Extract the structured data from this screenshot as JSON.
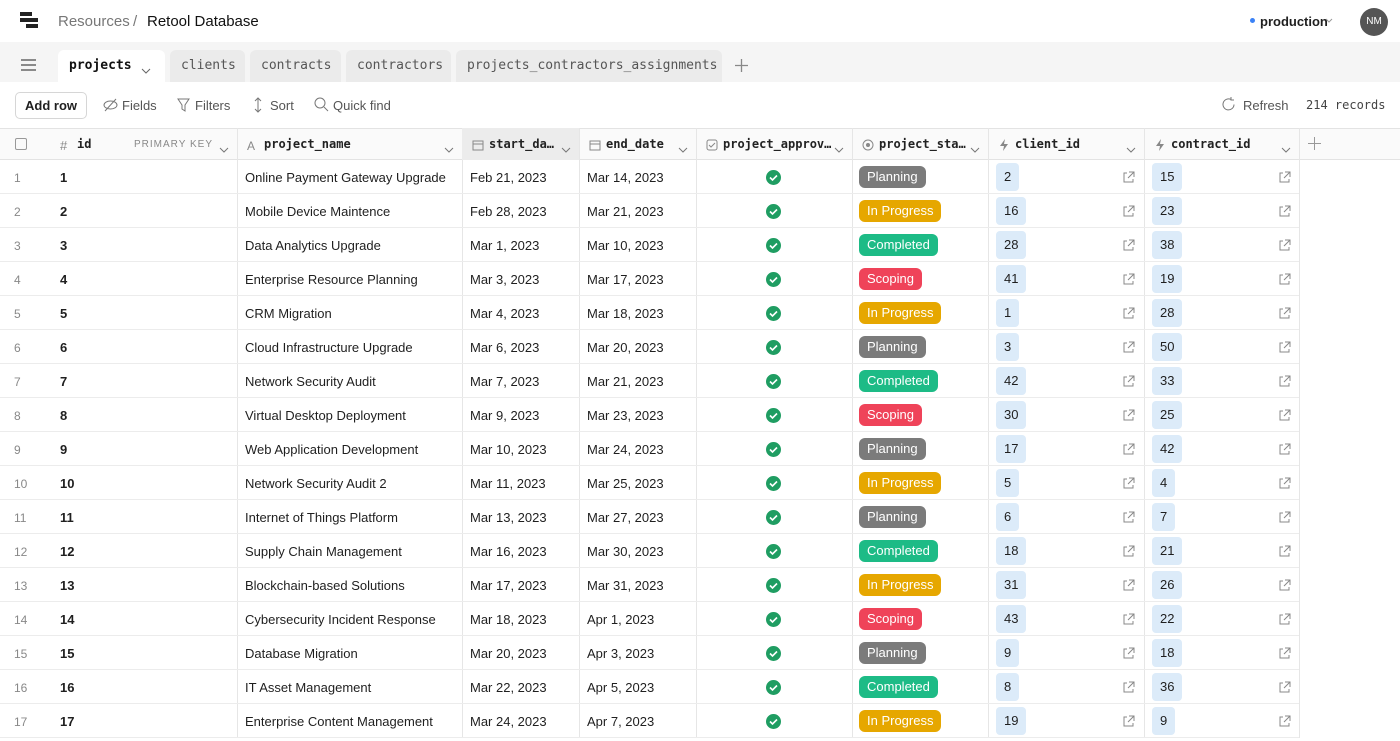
{
  "header": {
    "breadcrumb": "Resources",
    "separator": "/",
    "title": "Retool Database",
    "environment": "production",
    "avatar": "NM"
  },
  "tabs": [
    "projects",
    "clients",
    "contracts",
    "contractors",
    "projects_contractors_assignments"
  ],
  "toolbar": {
    "add_row": "Add row",
    "fields": "Fields",
    "filters": "Filters",
    "sort": "Sort",
    "quick_find": "Quick find",
    "refresh": "Refresh",
    "records": "214 records"
  },
  "table": {
    "columns": [
      "id",
      "project_name",
      "start_da…",
      "end_date",
      "project_approv…",
      "project_sta…",
      "client_id",
      "contract_id"
    ],
    "primary_key": "PRIMARY KEY",
    "status_colors": {
      "Planning": "#7b7b7b",
      "In Progress": "#e6a700",
      "Completed": "#1dbb86",
      "Scoping": "#ef4359"
    },
    "rows": [
      [
        1,
        1,
        "Online Payment Gateway Upgrade",
        "Feb 21, 2023",
        "Mar 14, 2023",
        "Planning",
        2,
        15
      ],
      [
        2,
        2,
        "Mobile Device Maintence",
        "Feb 28, 2023",
        "Mar 21, 2023",
        "In Progress",
        16,
        23
      ],
      [
        3,
        3,
        "Data Analytics Upgrade",
        "Mar 1, 2023",
        "Mar 10, 2023",
        "Completed",
        28,
        38
      ],
      [
        4,
        4,
        "Enterprise Resource Planning",
        "Mar 3, 2023",
        "Mar 17, 2023",
        "Scoping",
        41,
        19
      ],
      [
        5,
        5,
        "CRM Migration",
        "Mar 4, 2023",
        "Mar 18, 2023",
        "In Progress",
        1,
        28
      ],
      [
        6,
        6,
        "Cloud Infrastructure Upgrade",
        "Mar 6, 2023",
        "Mar 20, 2023",
        "Planning",
        3,
        50
      ],
      [
        7,
        7,
        "Network Security Audit",
        "Mar 7, 2023",
        "Mar 21, 2023",
        "Completed",
        42,
        33
      ],
      [
        8,
        8,
        "Virtual Desktop Deployment",
        "Mar 9, 2023",
        "Mar 23, 2023",
        "Scoping",
        30,
        25
      ],
      [
        9,
        9,
        "Web Application Development",
        "Mar 10, 2023",
        "Mar 24, 2023",
        "Planning",
        17,
        42
      ],
      [
        10,
        10,
        "Network Security Audit 2",
        "Mar 11, 2023",
        "Mar 25, 2023",
        "In Progress",
        5,
        4
      ],
      [
        11,
        11,
        "Internet of Things Platform",
        "Mar 13, 2023",
        "Mar 27, 2023",
        "Planning",
        6,
        7
      ],
      [
        12,
        12,
        "Supply Chain Management",
        "Mar 16, 2023",
        "Mar 30, 2023",
        "Completed",
        18,
        21
      ],
      [
        13,
        13,
        "Blockchain-based Solutions",
        "Mar 17, 2023",
        "Mar 31, 2023",
        "In Progress",
        31,
        26
      ],
      [
        14,
        14,
        "Cybersecurity Incident Response",
        "Mar 18, 2023",
        "Apr 1, 2023",
        "Scoping",
        43,
        22
      ],
      [
        15,
        15,
        "Database Migration",
        "Mar 20, 2023",
        "Apr 3, 2023",
        "Planning",
        9,
        18
      ],
      [
        16,
        16,
        "IT Asset Management",
        "Mar 22, 2023",
        "Apr 5, 2023",
        "Completed",
        8,
        36
      ],
      [
        17,
        17,
        "Enterprise Content Management",
        "Mar 24, 2023",
        "Apr 7, 2023",
        "In Progress",
        19,
        9
      ]
    ]
  }
}
